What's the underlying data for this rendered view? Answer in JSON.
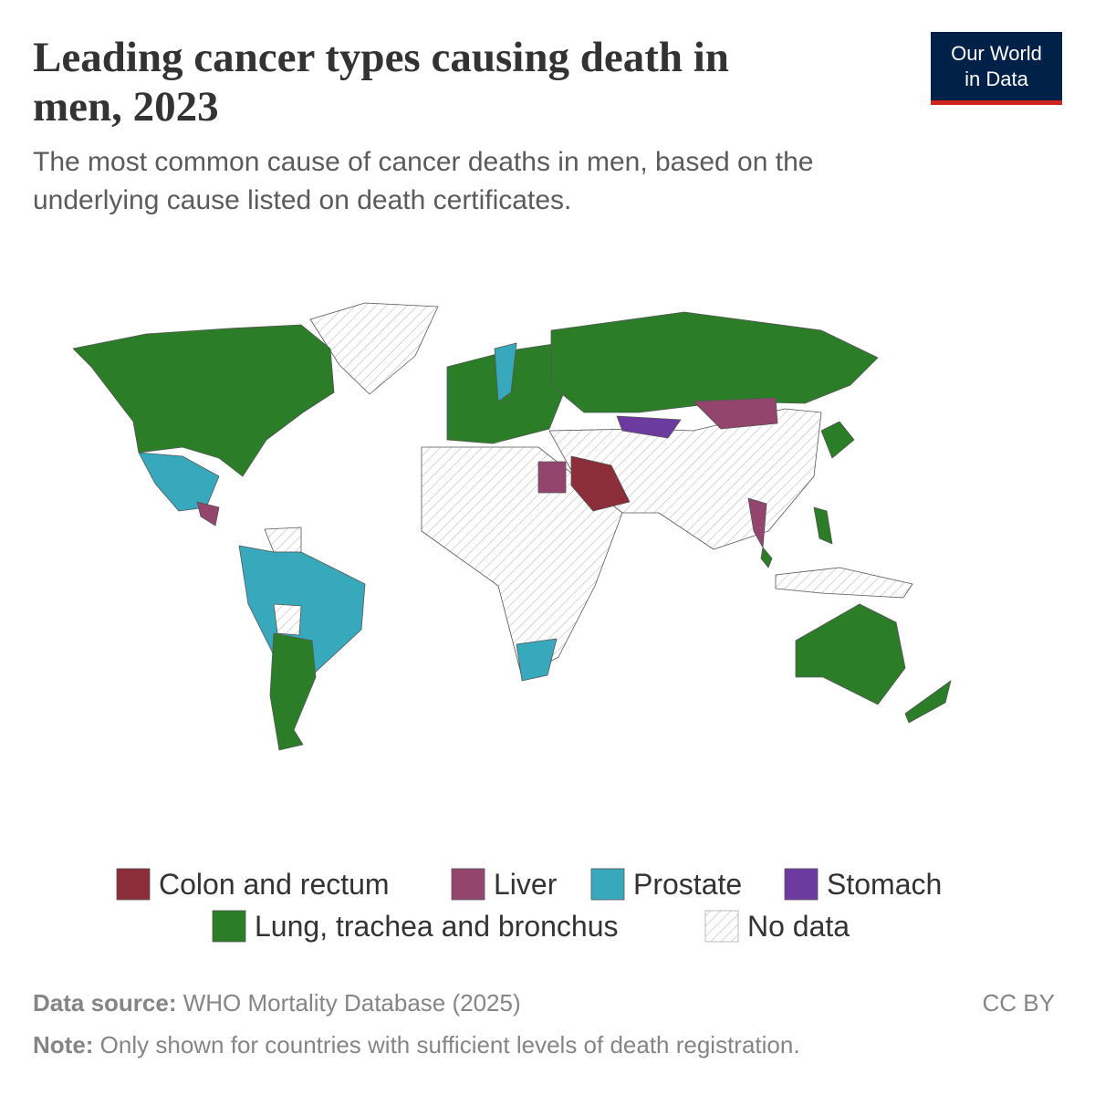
{
  "header": {
    "title_lines": [
      "Leading cancer types causing death in",
      "men, 2023"
    ],
    "subtitle_lines": [
      "The most common cause of cancer deaths in men, based on the",
      "underlying cause listed on death certificates."
    ]
  },
  "logo": {
    "lines": [
      "Our World",
      "in Data"
    ]
  },
  "legend": {
    "items": [
      {
        "name": "Colon and rectum",
        "color": "#8b2e3a"
      },
      {
        "name": "Liver",
        "color": "#93456d"
      },
      {
        "name": "Prostate",
        "color": "#38a9bd"
      },
      {
        "name": "Stomach",
        "color": "#6d3aa0"
      },
      {
        "name": "Lung, trachea and bronchus",
        "color": "#2b7d27"
      },
      {
        "name": "No data"
      }
    ]
  },
  "footer": {
    "source_label": "Data source:",
    "source": "WHO Mortality Database (2025)",
    "license": "CC BY",
    "note_label": "Note:",
    "note": "Only shown for countries with sufficient levels of death registration."
  }
}
